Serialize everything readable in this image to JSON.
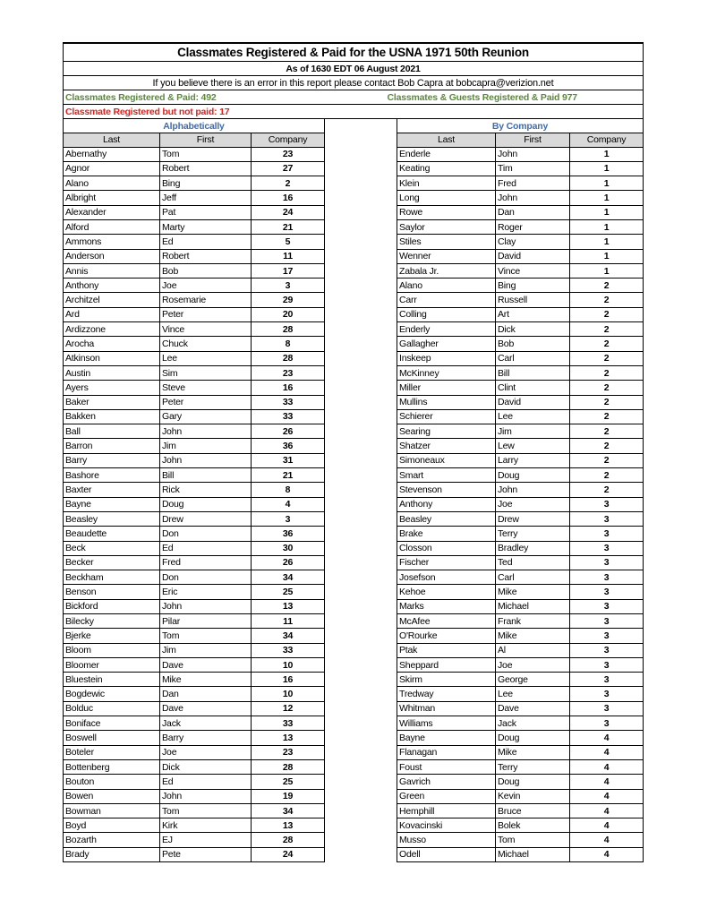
{
  "title": "Classmates Registered & Paid for the USNA 1971 50th Reunion",
  "as_of": "As of 1630 EDT 06 August 2021",
  "contact": "If you believe there is an error in this report please contact Bob Capra at bobcapra@verizion.net",
  "registered_paid": "Classmates Registered & Paid: 492",
  "guests_registered_paid": "Classmates & Guests Registered & Paid  977",
  "registered_not_paid": "Classmate Registered but not paid: 17",
  "colors": {
    "green": "#5a8a3a",
    "red": "#e0201b",
    "blue": "#3d6db5",
    "header_bg": "#d9d9d9"
  },
  "left_section": "Alphabetically",
  "right_section": "By Company",
  "columns": {
    "last": "Last",
    "first": "First",
    "company": "Company"
  },
  "alphabetical": [
    [
      "Abernathy",
      "Tom",
      "23"
    ],
    [
      "Agnor",
      "Robert",
      "27"
    ],
    [
      "Alano",
      "Bing",
      "2"
    ],
    [
      "Albright",
      "Jeff",
      "16"
    ],
    [
      "Alexander",
      "Pat",
      "24"
    ],
    [
      "Alford",
      "Marty",
      "21"
    ],
    [
      "Ammons",
      "Ed",
      "5"
    ],
    [
      "Anderson",
      "Robert",
      "11"
    ],
    [
      "Annis",
      "Bob",
      "17"
    ],
    [
      "Anthony",
      "Joe",
      "3"
    ],
    [
      "Architzel",
      "Rosemarie",
      "29"
    ],
    [
      "Ard",
      "Peter",
      "20"
    ],
    [
      "Ardizzone",
      "Vince",
      "28"
    ],
    [
      "Arocha",
      "Chuck",
      "8"
    ],
    [
      "Atkinson",
      "Lee",
      "28"
    ],
    [
      "Austin",
      "Sim",
      "23"
    ],
    [
      "Ayers",
      "Steve",
      "16"
    ],
    [
      "Baker",
      "Peter",
      "33"
    ],
    [
      "Bakken",
      "Gary",
      "33"
    ],
    [
      "Ball",
      "John",
      "26"
    ],
    [
      "Barron",
      "Jim",
      "36"
    ],
    [
      "Barry",
      "John",
      "31"
    ],
    [
      "Bashore",
      "Bill",
      "21"
    ],
    [
      "Baxter",
      "Rick",
      "8"
    ],
    [
      "Bayne",
      "Doug",
      "4"
    ],
    [
      "Beasley",
      "Drew",
      "3"
    ],
    [
      "Beaudette",
      "Don",
      "36"
    ],
    [
      "Beck",
      "Ed",
      "30"
    ],
    [
      "Becker",
      "Fred",
      "26"
    ],
    [
      "Beckham",
      "Don",
      "34"
    ],
    [
      "Benson",
      "Eric",
      "25"
    ],
    [
      "Bickford",
      "John",
      "13"
    ],
    [
      "Bilecky",
      "Pilar",
      "11"
    ],
    [
      "Bjerke",
      "Tom",
      "34"
    ],
    [
      "Bloom",
      "Jim",
      "33"
    ],
    [
      "Bloomer",
      "Dave",
      "10"
    ],
    [
      "Bluestein",
      "Mike",
      "16"
    ],
    [
      "Bogdewic",
      "Dan",
      "10"
    ],
    [
      "Bolduc",
      "Dave",
      "12"
    ],
    [
      "Boniface",
      "Jack",
      "33"
    ],
    [
      "Boswell",
      "Barry",
      "13"
    ],
    [
      "Boteler",
      "Joe",
      "23"
    ],
    [
      "Bottenberg",
      "Dick",
      "28"
    ],
    [
      "Bouton",
      "Ed",
      "25"
    ],
    [
      "Bowen",
      "John",
      "19"
    ],
    [
      "Bowman",
      "Tom",
      "34"
    ],
    [
      "Boyd",
      "Kirk",
      "13"
    ],
    [
      "Bozarth",
      "EJ",
      "28"
    ],
    [
      "Brady",
      "Pete",
      "24"
    ]
  ],
  "by_company": [
    [
      "Enderle",
      "John",
      "1"
    ],
    [
      "Keating",
      "Tim",
      "1"
    ],
    [
      "Klein",
      "Fred",
      "1"
    ],
    [
      "Long",
      "John",
      "1"
    ],
    [
      "Rowe",
      "Dan",
      "1"
    ],
    [
      "Saylor",
      "Roger",
      "1"
    ],
    [
      "Stiles",
      "Clay",
      "1"
    ],
    [
      "Wenner",
      "David",
      "1"
    ],
    [
      "Zabala Jr.",
      "Vince",
      "1"
    ],
    [
      "Alano",
      "Bing",
      "2"
    ],
    [
      "Carr",
      "Russell",
      "2"
    ],
    [
      "Colling",
      "Art",
      "2"
    ],
    [
      "Enderly",
      "Dick",
      "2"
    ],
    [
      "Gallagher",
      "Bob",
      "2"
    ],
    [
      "Inskeep",
      "Carl",
      "2"
    ],
    [
      "McKinney",
      "Bill",
      "2"
    ],
    [
      "Miller",
      "Clint",
      "2"
    ],
    [
      "Mullins",
      "David",
      "2"
    ],
    [
      "Schierer",
      "Lee",
      "2"
    ],
    [
      "Searing",
      "Jim",
      "2"
    ],
    [
      "Shatzer",
      "Lew",
      "2"
    ],
    [
      "Simoneaux",
      "Larry",
      "2"
    ],
    [
      "Smart",
      "Doug",
      "2"
    ],
    [
      "Stevenson",
      "John",
      "2"
    ],
    [
      "Anthony",
      "Joe",
      "3"
    ],
    [
      "Beasley",
      "Drew",
      "3"
    ],
    [
      "Brake",
      "Terry",
      "3"
    ],
    [
      "Closson",
      "Bradley",
      "3"
    ],
    [
      "Fischer",
      "Ted",
      "3"
    ],
    [
      "Josefson",
      "Carl",
      "3"
    ],
    [
      "Kehoe",
      "Mike",
      "3"
    ],
    [
      "Marks",
      "Michael",
      "3"
    ],
    [
      "McAfee",
      "Frank",
      "3"
    ],
    [
      "O'Rourke",
      "Mike",
      "3"
    ],
    [
      "Ptak",
      "Al",
      "3"
    ],
    [
      "Sheppard",
      "Joe",
      "3"
    ],
    [
      "Skirm",
      "George",
      "3"
    ],
    [
      "Tredway",
      "Lee",
      "3"
    ],
    [
      "Whitman",
      "Dave",
      "3"
    ],
    [
      "Williams",
      "Jack",
      "3"
    ],
    [
      "Bayne",
      "Doug",
      "4"
    ],
    [
      "Flanagan",
      "Mike",
      "4"
    ],
    [
      "Foust",
      "Terry",
      "4"
    ],
    [
      "Gavrich",
      "Doug",
      "4"
    ],
    [
      "Green",
      "Kevin",
      "4"
    ],
    [
      "Hemphill",
      "Bruce",
      "4"
    ],
    [
      "Kovacinski",
      "Bolek",
      "4"
    ],
    [
      "Musso",
      "Tom",
      "4"
    ],
    [
      "Odell",
      "Michael",
      "4"
    ]
  ]
}
